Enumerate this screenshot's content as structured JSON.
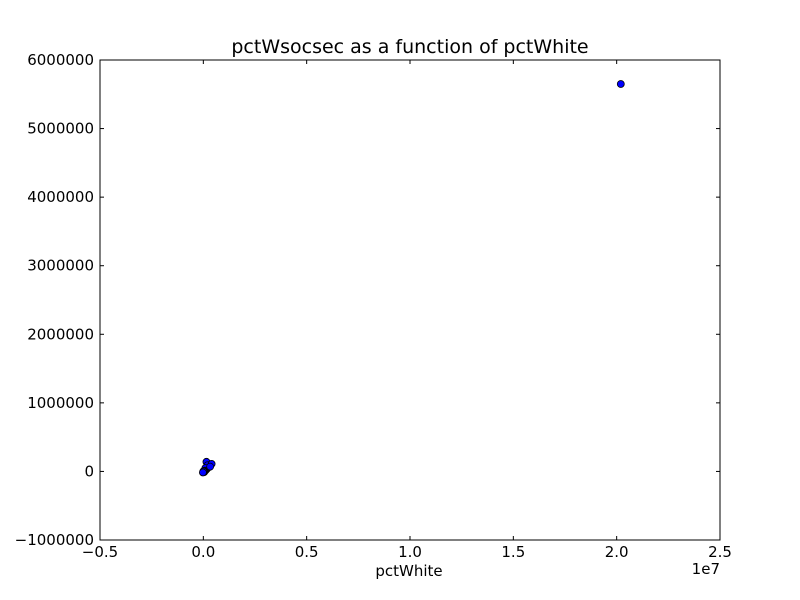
{
  "chart_data": {
    "type": "scatter",
    "title": "pctWsocsec as a function of pctWhite",
    "xlabel": "pctWhite",
    "ylabel": "",
    "x_offset_label": "1e7",
    "xlim": [
      -5000000,
      25000000
    ],
    "ylim": [
      -1000000,
      6000000
    ],
    "x_ticks": [
      -5000000,
      0,
      5000000,
      10000000,
      15000000,
      20000000,
      25000000
    ],
    "x_tick_labels": [
      "−0.5",
      "0.0",
      "0.5",
      "1.0",
      "1.5",
      "2.0",
      "2.5"
    ],
    "y_ticks": [
      -1000000,
      0,
      1000000,
      2000000,
      3000000,
      4000000,
      5000000,
      6000000
    ],
    "y_tick_labels": [
      "−1000000",
      "0",
      "1000000",
      "2000000",
      "3000000",
      "4000000",
      "5000000",
      "6000000"
    ],
    "grid": false,
    "marker_color": "#0000ff",
    "marker_edge_color": "#000000",
    "points": [
      {
        "x": 20200000,
        "y": 5650000
      },
      {
        "x": 150000,
        "y": 140000
      },
      {
        "x": 350000,
        "y": 100000
      },
      {
        "x": 300000,
        "y": 80000
      },
      {
        "x": 250000,
        "y": 60000
      },
      {
        "x": 200000,
        "y": 90000
      },
      {
        "x": 180000,
        "y": 40000
      },
      {
        "x": 120000,
        "y": 20000
      },
      {
        "x": 100000,
        "y": 50000
      },
      {
        "x": 80000,
        "y": 10000
      },
      {
        "x": 60000,
        "y": 0
      },
      {
        "x": 40000,
        "y": -10000
      },
      {
        "x": 20000,
        "y": 5000
      },
      {
        "x": 10000,
        "y": -5000
      },
      {
        "x": 5000,
        "y": 2000
      },
      {
        "x": -20000,
        "y": -15000
      },
      {
        "x": 400000,
        "y": 110000
      },
      {
        "x": 330000,
        "y": 70000
      }
    ]
  }
}
